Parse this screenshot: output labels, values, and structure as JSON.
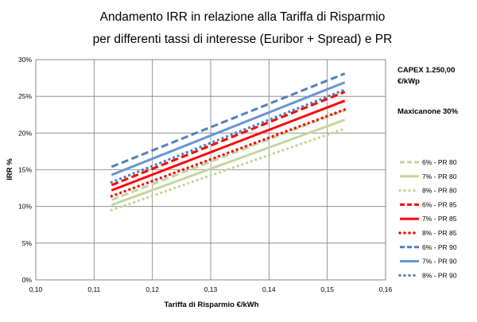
{
  "chart_data": {
    "type": "line",
    "title_lines": [
      "Andamento IRR in relazione alla Tariffa di Risparmio",
      "per differenti tassi di interesse (Euribor + Spread) e PR"
    ],
    "xlabel": "Tariffa di Risparmio €/kWh",
    "ylabel": "IRR %",
    "xlim": [
      0.1,
      0.16
    ],
    "ylim": [
      0,
      30
    ],
    "x_ticks": [
      "0,10",
      "0,11",
      "0,12",
      "0,13",
      "0,14",
      "0,15",
      "0,16"
    ],
    "y_ticks": [
      "0%",
      "5%",
      "10%",
      "15%",
      "20%",
      "25%",
      "30%"
    ],
    "grid": true,
    "legend_position": "right",
    "notes": [
      "CAPEX 1.250,00",
      "€/kWp",
      "Maxicanone 30%"
    ],
    "series": [
      {
        "name": "6% - PR 80",
        "color": "#c3d69b",
        "style": "dashed",
        "x": [
          0.113,
          0.153
        ],
        "y": [
          10.9,
          23.1
        ]
      },
      {
        "name": "7% - PR 80",
        "color": "#c3d69b",
        "style": "solid",
        "x": [
          0.113,
          0.153
        ],
        "y": [
          10.2,
          21.8
        ]
      },
      {
        "name": "8% - PR 80",
        "color": "#c3d69b",
        "style": "dotted",
        "x": [
          0.113,
          0.153
        ],
        "y": [
          9.5,
          20.6
        ]
      },
      {
        "name": "6% - PR 85",
        "color": "#ff0000",
        "style": "dashed",
        "x": [
          0.113,
          0.153
        ],
        "y": [
          12.9,
          25.6
        ]
      },
      {
        "name": "7% - PR 85",
        "color": "#ff0000",
        "style": "solid",
        "x": [
          0.113,
          0.153
        ],
        "y": [
          12.2,
          24.4
        ]
      },
      {
        "name": "8% - PR 85",
        "color": "#ff0000",
        "style": "dotted",
        "x": [
          0.113,
          0.153
        ],
        "y": [
          11.4,
          23.2
        ]
      },
      {
        "name": "6% - PR 90",
        "color": "#4f81bd",
        "style": "dashed",
        "x": [
          0.113,
          0.153
        ],
        "y": [
          15.4,
          28.1
        ]
      },
      {
        "name": "7% - PR 90",
        "color": "#6495d5",
        "style": "solid",
        "x": [
          0.113,
          0.153
        ],
        "y": [
          14.3,
          26.9
        ]
      },
      {
        "name": "8% - PR 90",
        "color": "#4f81bd",
        "style": "dotted",
        "x": [
          0.113,
          0.153
        ],
        "y": [
          13.3,
          25.9
        ]
      }
    ]
  }
}
